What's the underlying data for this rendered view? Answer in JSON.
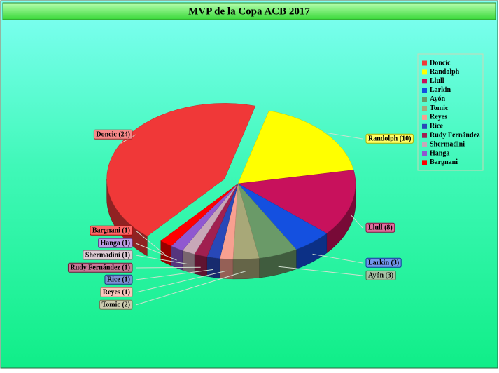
{
  "chart_data": {
    "type": "pie",
    "title": "MVP de la Copa ACB 2017",
    "categories": [
      "Doncic",
      "Randolph",
      "Llull",
      "Larkin",
      "Ayón",
      "Tomic",
      "Reyes",
      "Rice",
      "Rudy Fernández",
      "Shermadini",
      "Hanga",
      "Bargnani"
    ],
    "values": [
      24,
      10,
      8,
      3,
      3,
      2,
      1,
      1,
      1,
      1,
      1,
      1
    ],
    "value_labels": [
      "Doncic (24)",
      "Randolph (10)",
      "Llull (8)",
      "Larkin (3)",
      "Ayón (3)",
      "Tomic (2)",
      "Reyes (1)",
      "Rice (1)",
      "Rudy Fernández (1)",
      "Shermadini (1)",
      "Hanga (1)",
      "Bargnani (1)"
    ],
    "colors": [
      "#f03838",
      "#ffff00",
      "#c8115c",
      "#1450e0",
      "#6a9a68",
      "#a8a878",
      "#f8a090",
      "#2848b8",
      "#a02050",
      "#c8a8b8",
      "#9058d0",
      "#ff0000"
    ],
    "legend": "right"
  }
}
